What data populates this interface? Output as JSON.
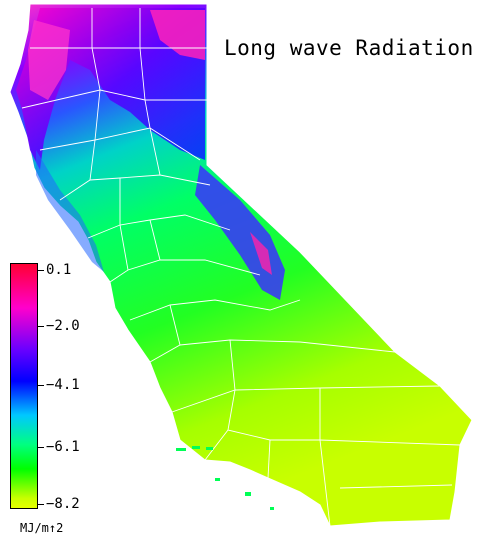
{
  "title": "Long wave Radiation",
  "legend": {
    "ticks": [
      "0.1",
      "−2.0",
      "−4.1",
      "−6.1",
      "−8.2"
    ],
    "unit": "MJ/m↑2",
    "colors": [
      "#ff0033",
      "#ff00cc",
      "#6a00ff",
      "#0000ff",
      "#00c8ff",
      "#00ff80",
      "#00ff00",
      "#c8ff00",
      "#e6ff00"
    ]
  }
}
